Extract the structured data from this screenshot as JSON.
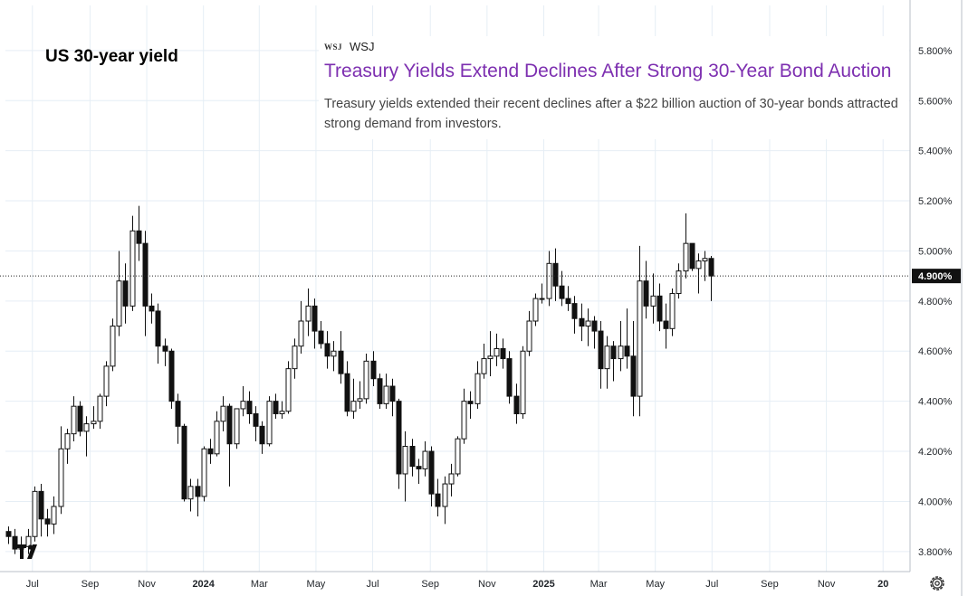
{
  "chart_data": {
    "type": "candlestick",
    "title": "US 30-year yield",
    "ylim": [
      3.72,
      5.98
    ],
    "y_ticks": [
      "3.800%",
      "4.000%",
      "4.200%",
      "4.400%",
      "4.600%",
      "4.800%",
      "5.000%",
      "5.200%",
      "5.400%",
      "5.600%",
      "5.800%"
    ],
    "y_tick_values": [
      3.8,
      4.0,
      4.2,
      4.4,
      4.6,
      4.8,
      5.0,
      5.2,
      5.4,
      5.6,
      5.8
    ],
    "current_value": 4.9,
    "current_label": "4.900%",
    "x_start": "2023-06-02",
    "x_end": "2026-01-30",
    "x_ticks": [
      {
        "label": "Jul",
        "date": "2023-07-01"
      },
      {
        "label": "Sep",
        "date": "2023-09-01"
      },
      {
        "label": "Nov",
        "date": "2023-11-01"
      },
      {
        "label": "2024",
        "date": "2024-01-01",
        "bold": true
      },
      {
        "label": "Mar",
        "date": "2024-03-01"
      },
      {
        "label": "May",
        "date": "2024-05-01"
      },
      {
        "label": "Jul",
        "date": "2024-07-01"
      },
      {
        "label": "Sep",
        "date": "2024-09-01"
      },
      {
        "label": "Nov",
        "date": "2024-11-01"
      },
      {
        "label": "2025",
        "date": "2025-01-01",
        "bold": true
      },
      {
        "label": "Mar",
        "date": "2025-03-01"
      },
      {
        "label": "May",
        "date": "2025-05-01"
      },
      {
        "label": "Jul",
        "date": "2025-07-01"
      },
      {
        "label": "Sep",
        "date": "2025-09-01"
      },
      {
        "label": "Nov",
        "date": "2025-11-01"
      },
      {
        "label": "20",
        "date": "2026-01-01",
        "bold": true
      }
    ],
    "candles": [
      {
        "d": "2023-06-05",
        "o": 3.88,
        "h": 3.9,
        "l": 3.83,
        "c": 3.86
      },
      {
        "d": "2023-06-12",
        "o": 3.86,
        "h": 3.89,
        "l": 3.79,
        "c": 3.81
      },
      {
        "d": "2023-06-19",
        "o": 3.81,
        "h": 3.86,
        "l": 3.78,
        "c": 3.82
      },
      {
        "d": "2023-06-26",
        "o": 3.82,
        "h": 3.89,
        "l": 3.79,
        "c": 3.86
      },
      {
        "d": "2023-07-03",
        "o": 3.86,
        "h": 4.06,
        "l": 3.84,
        "c": 4.04
      },
      {
        "d": "2023-07-10",
        "o": 4.04,
        "h": 4.07,
        "l": 3.86,
        "c": 3.93
      },
      {
        "d": "2023-07-17",
        "o": 3.93,
        "h": 3.97,
        "l": 3.86,
        "c": 3.91
      },
      {
        "d": "2023-07-24",
        "o": 3.91,
        "h": 4.02,
        "l": 3.87,
        "c": 3.98
      },
      {
        "d": "2023-07-31",
        "o": 3.98,
        "h": 4.3,
        "l": 3.95,
        "c": 4.21
      },
      {
        "d": "2023-08-07",
        "o": 4.21,
        "h": 4.29,
        "l": 4.15,
        "c": 4.27
      },
      {
        "d": "2023-08-14",
        "o": 4.27,
        "h": 4.42,
        "l": 4.24,
        "c": 4.38
      },
      {
        "d": "2023-08-21",
        "o": 4.38,
        "h": 4.4,
        "l": 4.26,
        "c": 4.28
      },
      {
        "d": "2023-08-28",
        "o": 4.28,
        "h": 4.34,
        "l": 4.18,
        "c": 4.31
      },
      {
        "d": "2023-09-04",
        "o": 4.31,
        "h": 4.38,
        "l": 4.29,
        "c": 4.32
      },
      {
        "d": "2023-09-11",
        "o": 4.32,
        "h": 4.43,
        "l": 4.29,
        "c": 4.42
      },
      {
        "d": "2023-09-18",
        "o": 4.42,
        "h": 4.56,
        "l": 4.38,
        "c": 4.54
      },
      {
        "d": "2023-09-25",
        "o": 4.54,
        "h": 4.73,
        "l": 4.52,
        "c": 4.7
      },
      {
        "d": "2023-10-02",
        "o": 4.7,
        "h": 5.0,
        "l": 4.66,
        "c": 4.88
      },
      {
        "d": "2023-10-09",
        "o": 4.88,
        "h": 4.95,
        "l": 4.71,
        "c": 4.78
      },
      {
        "d": "2023-10-16",
        "o": 4.78,
        "h": 5.14,
        "l": 4.76,
        "c": 5.08
      },
      {
        "d": "2023-10-23",
        "o": 5.08,
        "h": 5.18,
        "l": 4.96,
        "c": 5.03
      },
      {
        "d": "2023-10-30",
        "o": 5.03,
        "h": 5.08,
        "l": 4.66,
        "c": 4.78
      },
      {
        "d": "2023-11-06",
        "o": 4.78,
        "h": 4.83,
        "l": 4.71,
        "c": 4.76
      },
      {
        "d": "2023-11-13",
        "o": 4.76,
        "h": 4.79,
        "l": 4.55,
        "c": 4.62
      },
      {
        "d": "2023-11-20",
        "o": 4.62,
        "h": 4.65,
        "l": 4.54,
        "c": 4.6
      },
      {
        "d": "2023-11-27",
        "o": 4.6,
        "h": 4.61,
        "l": 4.37,
        "c": 4.4
      },
      {
        "d": "2023-12-04",
        "o": 4.4,
        "h": 4.43,
        "l": 4.23,
        "c": 4.3
      },
      {
        "d": "2023-12-11",
        "o": 4.3,
        "h": 4.31,
        "l": 4.0,
        "c": 4.01
      },
      {
        "d": "2023-12-18",
        "o": 4.01,
        "h": 4.09,
        "l": 3.96,
        "c": 4.06
      },
      {
        "d": "2023-12-25",
        "o": 4.06,
        "h": 4.09,
        "l": 3.94,
        "c": 4.02
      },
      {
        "d": "2024-01-01",
        "o": 4.02,
        "h": 4.22,
        "l": 4.0,
        "c": 4.21
      },
      {
        "d": "2024-01-08",
        "o": 4.21,
        "h": 4.25,
        "l": 4.15,
        "c": 4.19
      },
      {
        "d": "2024-01-15",
        "o": 4.19,
        "h": 4.36,
        "l": 4.18,
        "c": 4.32
      },
      {
        "d": "2024-01-22",
        "o": 4.32,
        "h": 4.42,
        "l": 4.28,
        "c": 4.38
      },
      {
        "d": "2024-01-29",
        "o": 4.38,
        "h": 4.39,
        "l": 4.06,
        "c": 4.23
      },
      {
        "d": "2024-02-05",
        "o": 4.23,
        "h": 4.37,
        "l": 4.21,
        "c": 4.37
      },
      {
        "d": "2024-02-12",
        "o": 4.37,
        "h": 4.46,
        "l": 4.34,
        "c": 4.4
      },
      {
        "d": "2024-02-19",
        "o": 4.4,
        "h": 4.44,
        "l": 4.31,
        "c": 4.35
      },
      {
        "d": "2024-02-26",
        "o": 4.35,
        "h": 4.38,
        "l": 4.24,
        "c": 4.3
      },
      {
        "d": "2024-03-04",
        "o": 4.3,
        "h": 4.32,
        "l": 4.19,
        "c": 4.23
      },
      {
        "d": "2024-03-11",
        "o": 4.23,
        "h": 4.42,
        "l": 4.22,
        "c": 4.4
      },
      {
        "d": "2024-03-18",
        "o": 4.4,
        "h": 4.43,
        "l": 4.33,
        "c": 4.35
      },
      {
        "d": "2024-03-25",
        "o": 4.35,
        "h": 4.4,
        "l": 4.33,
        "c": 4.36
      },
      {
        "d": "2024-04-01",
        "o": 4.36,
        "h": 4.56,
        "l": 4.35,
        "c": 4.53
      },
      {
        "d": "2024-04-08",
        "o": 4.53,
        "h": 4.65,
        "l": 4.49,
        "c": 4.62
      },
      {
        "d": "2024-04-15",
        "o": 4.62,
        "h": 4.8,
        "l": 4.59,
        "c": 4.72
      },
      {
        "d": "2024-04-22",
        "o": 4.72,
        "h": 4.85,
        "l": 4.66,
        "c": 4.78
      },
      {
        "d": "2024-04-29",
        "o": 4.78,
        "h": 4.81,
        "l": 4.61,
        "c": 4.68
      },
      {
        "d": "2024-05-06",
        "o": 4.68,
        "h": 4.72,
        "l": 4.61,
        "c": 4.63
      },
      {
        "d": "2024-05-13",
        "o": 4.63,
        "h": 4.68,
        "l": 4.53,
        "c": 4.58
      },
      {
        "d": "2024-05-20",
        "o": 4.58,
        "h": 4.64,
        "l": 4.52,
        "c": 4.6
      },
      {
        "d": "2024-05-27",
        "o": 4.6,
        "h": 4.68,
        "l": 4.47,
        "c": 4.51
      },
      {
        "d": "2024-06-03",
        "o": 4.51,
        "h": 4.56,
        "l": 4.34,
        "c": 4.36
      },
      {
        "d": "2024-06-10",
        "o": 4.36,
        "h": 4.49,
        "l": 4.33,
        "c": 4.4
      },
      {
        "d": "2024-06-17",
        "o": 4.4,
        "h": 4.48,
        "l": 4.37,
        "c": 4.41
      },
      {
        "d": "2024-06-24",
        "o": 4.41,
        "h": 4.59,
        "l": 4.39,
        "c": 4.56
      },
      {
        "d": "2024-07-01",
        "o": 4.56,
        "h": 4.6,
        "l": 4.46,
        "c": 4.49
      },
      {
        "d": "2024-07-08",
        "o": 4.49,
        "h": 4.51,
        "l": 4.37,
        "c": 4.39
      },
      {
        "d": "2024-07-15",
        "o": 4.39,
        "h": 4.51,
        "l": 4.37,
        "c": 4.46
      },
      {
        "d": "2024-07-22",
        "o": 4.46,
        "h": 4.49,
        "l": 4.34,
        "c": 4.4
      },
      {
        "d": "2024-07-29",
        "o": 4.4,
        "h": 4.41,
        "l": 4.05,
        "c": 4.11
      },
      {
        "d": "2024-08-05",
        "o": 4.11,
        "h": 4.28,
        "l": 4.0,
        "c": 4.22
      },
      {
        "d": "2024-08-12",
        "o": 4.22,
        "h": 4.25,
        "l": 4.1,
        "c": 4.14
      },
      {
        "d": "2024-08-19",
        "o": 4.14,
        "h": 4.17,
        "l": 4.07,
        "c": 4.13
      },
      {
        "d": "2024-08-26",
        "o": 4.13,
        "h": 4.24,
        "l": 4.1,
        "c": 4.2
      },
      {
        "d": "2024-09-02",
        "o": 4.2,
        "h": 4.22,
        "l": 3.98,
        "c": 4.03
      },
      {
        "d": "2024-09-09",
        "o": 4.03,
        "h": 4.09,
        "l": 3.94,
        "c": 3.98
      },
      {
        "d": "2024-09-16",
        "o": 3.98,
        "h": 4.1,
        "l": 3.91,
        "c": 4.07
      },
      {
        "d": "2024-09-23",
        "o": 4.07,
        "h": 4.15,
        "l": 4.02,
        "c": 4.11
      },
      {
        "d": "2024-09-30",
        "o": 4.11,
        "h": 4.26,
        "l": 4.1,
        "c": 4.25
      },
      {
        "d": "2024-10-07",
        "o": 4.25,
        "h": 4.45,
        "l": 4.23,
        "c": 4.4
      },
      {
        "d": "2024-10-14",
        "o": 4.4,
        "h": 4.44,
        "l": 4.33,
        "c": 4.39
      },
      {
        "d": "2024-10-21",
        "o": 4.39,
        "h": 4.56,
        "l": 4.37,
        "c": 4.51
      },
      {
        "d": "2024-10-28",
        "o": 4.51,
        "h": 4.63,
        "l": 4.49,
        "c": 4.57
      },
      {
        "d": "2024-11-04",
        "o": 4.57,
        "h": 4.68,
        "l": 4.5,
        "c": 4.58
      },
      {
        "d": "2024-11-11",
        "o": 4.58,
        "h": 4.67,
        "l": 4.54,
        "c": 4.61
      },
      {
        "d": "2024-11-18",
        "o": 4.61,
        "h": 4.65,
        "l": 4.53,
        "c": 4.57
      },
      {
        "d": "2024-11-25",
        "o": 4.57,
        "h": 4.6,
        "l": 4.39,
        "c": 4.42
      },
      {
        "d": "2024-12-02",
        "o": 4.42,
        "h": 4.47,
        "l": 4.31,
        "c": 4.35
      },
      {
        "d": "2024-12-09",
        "o": 4.35,
        "h": 4.62,
        "l": 4.33,
        "c": 4.6
      },
      {
        "d": "2024-12-16",
        "o": 4.6,
        "h": 4.76,
        "l": 4.58,
        "c": 4.72
      },
      {
        "d": "2024-12-23",
        "o": 4.72,
        "h": 4.83,
        "l": 4.7,
        "c": 4.81
      },
      {
        "d": "2024-12-30",
        "o": 4.81,
        "h": 4.87,
        "l": 4.79,
        "c": 4.81
      },
      {
        "d": "2025-01-06",
        "o": 4.81,
        "h": 5.0,
        "l": 4.78,
        "c": 4.95
      },
      {
        "d": "2025-01-13",
        "o": 4.95,
        "h": 5.01,
        "l": 4.8,
        "c": 4.86
      },
      {
        "d": "2025-01-20",
        "o": 4.86,
        "h": 4.92,
        "l": 4.78,
        "c": 4.81
      },
      {
        "d": "2025-01-27",
        "o": 4.81,
        "h": 4.86,
        "l": 4.76,
        "c": 4.79
      },
      {
        "d": "2025-02-03",
        "o": 4.79,
        "h": 4.82,
        "l": 4.67,
        "c": 4.73
      },
      {
        "d": "2025-02-10",
        "o": 4.73,
        "h": 4.79,
        "l": 4.64,
        "c": 4.7
      },
      {
        "d": "2025-02-17",
        "o": 4.7,
        "h": 4.77,
        "l": 4.62,
        "c": 4.72
      },
      {
        "d": "2025-02-24",
        "o": 4.72,
        "h": 4.74,
        "l": 4.61,
        "c": 4.68
      },
      {
        "d": "2025-03-03",
        "o": 4.68,
        "h": 4.72,
        "l": 4.45,
        "c": 4.53
      },
      {
        "d": "2025-03-10",
        "o": 4.53,
        "h": 4.66,
        "l": 4.45,
        "c": 4.62
      },
      {
        "d": "2025-03-17",
        "o": 4.62,
        "h": 4.64,
        "l": 4.48,
        "c": 4.57
      },
      {
        "d": "2025-03-24",
        "o": 4.57,
        "h": 4.72,
        "l": 4.52,
        "c": 4.62
      },
      {
        "d": "2025-03-31",
        "o": 4.62,
        "h": 4.77,
        "l": 4.53,
        "c": 4.58
      },
      {
        "d": "2025-04-07",
        "o": 4.58,
        "h": 4.72,
        "l": 4.34,
        "c": 4.42
      },
      {
        "d": "2025-04-14",
        "o": 4.42,
        "h": 5.02,
        "l": 4.34,
        "c": 4.88
      },
      {
        "d": "2025-04-21",
        "o": 4.88,
        "h": 4.96,
        "l": 4.73,
        "c": 4.78
      },
      {
        "d": "2025-04-28",
        "o": 4.78,
        "h": 4.91,
        "l": 4.71,
        "c": 4.82
      },
      {
        "d": "2025-05-05",
        "o": 4.82,
        "h": 4.87,
        "l": 4.68,
        "c": 4.72
      },
      {
        "d": "2025-05-12",
        "o": 4.72,
        "h": 4.79,
        "l": 4.61,
        "c": 4.69
      },
      {
        "d": "2025-05-19",
        "o": 4.69,
        "h": 4.85,
        "l": 4.66,
        "c": 4.83
      },
      {
        "d": "2025-05-26",
        "o": 4.83,
        "h": 4.95,
        "l": 4.81,
        "c": 4.92
      },
      {
        "d": "2025-06-02",
        "o": 4.92,
        "h": 5.15,
        "l": 4.89,
        "c": 5.03
      },
      {
        "d": "2025-06-09",
        "o": 5.03,
        "h": 5.03,
        "l": 4.92,
        "c": 4.93
      },
      {
        "d": "2025-06-16",
        "o": 4.93,
        "h": 4.99,
        "l": 4.83,
        "c": 4.96
      },
      {
        "d": "2025-06-23",
        "o": 4.96,
        "h": 5.0,
        "l": 4.88,
        "c": 4.97
      },
      {
        "d": "2025-06-30",
        "o": 4.97,
        "h": 4.98,
        "l": 4.8,
        "c": 4.9
      }
    ]
  },
  "news": {
    "source_logo": "WSJ",
    "source": "WSJ",
    "headline": "Treasury Yields Extend Declines After Strong 30-Year Bond Auction",
    "summary": "Treasury yields extended their recent declines after a $22 billion auction of 30-year bonds attracted strong demand from investors."
  },
  "icons": {
    "logo": "tradingview-logo-icon",
    "settings": "gear-icon"
  },
  "colors": {
    "headline": "#7d2fb0",
    "candle": "#111111",
    "price_label_bg": "#111111"
  }
}
